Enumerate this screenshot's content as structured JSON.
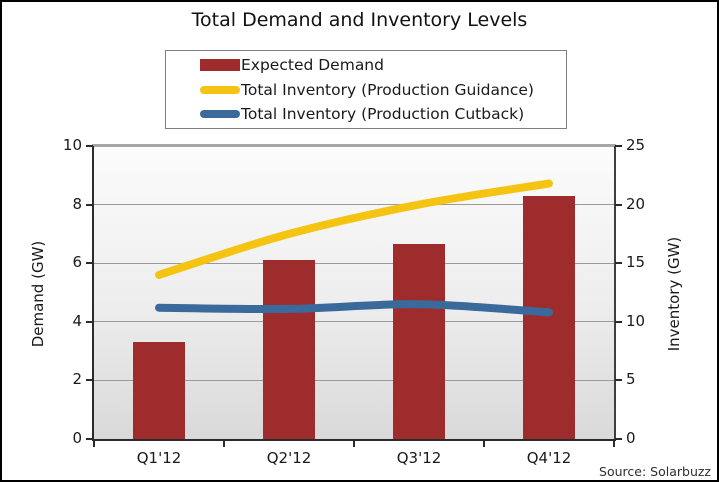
{
  "title": "Total Demand and Inventory Levels",
  "source": "Source: Solarbuzz",
  "chart_data": {
    "type": "bar",
    "title": "Total Demand and Inventory Levels",
    "categories": [
      "Q1'12",
      "Q2'12",
      "Q3'12",
      "Q4'12"
    ],
    "series": [
      {
        "name": "Expected Demand",
        "type": "bar",
        "axis": "left",
        "color": "#9E2C2C",
        "values": [
          3.3,
          6.1,
          6.65,
          8.3
        ]
      },
      {
        "name": "Total Inventory (Production Guidance)",
        "type": "line",
        "axis": "right",
        "color": "#F5C413",
        "values": [
          14,
          17.5,
          20,
          21.8
        ]
      },
      {
        "name": "Total Inventory (Production Cutback)",
        "type": "line",
        "axis": "right",
        "color": "#3A6A9C",
        "values": [
          11.2,
          11.1,
          11.5,
          10.8
        ]
      }
    ],
    "axes": {
      "left": {
        "label": "Demand (GW)",
        "min": 0,
        "max": 10,
        "ticks": [
          0,
          2,
          4,
          6,
          8,
          10
        ]
      },
      "right": {
        "label": "Inventory (GW)",
        "min": 0,
        "max": 25,
        "ticks": [
          0,
          5,
          10,
          15,
          20,
          25
        ]
      }
    },
    "legend_position": "top-center",
    "grid": true
  }
}
